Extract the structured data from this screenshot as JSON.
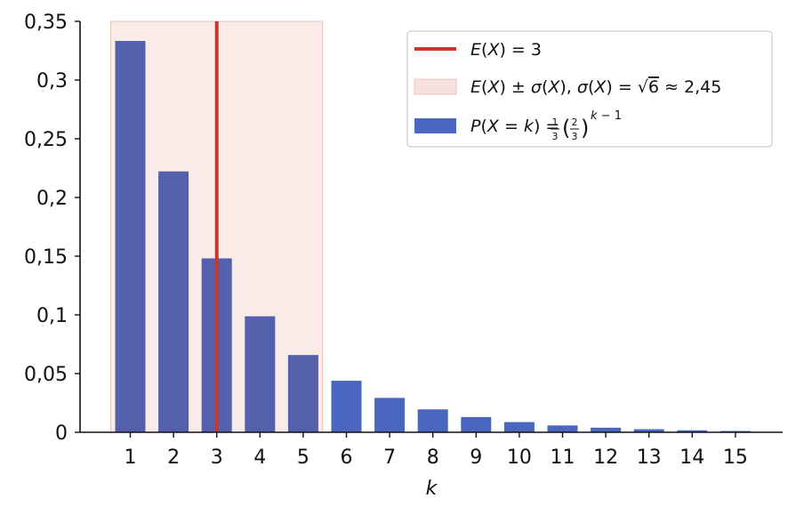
{
  "chart_data": {
    "type": "bar",
    "xlabel": "k",
    "ylabel": "",
    "title": "",
    "ylim": [
      0,
      0.35
    ],
    "grid": false,
    "legend_position": "top-right",
    "categories": [
      "1",
      "2",
      "3",
      "4",
      "5",
      "6",
      "7",
      "8",
      "9",
      "10",
      "11",
      "12",
      "13",
      "14",
      "15"
    ],
    "values": [
      0.3333,
      0.2222,
      0.1481,
      0.0988,
      0.0658,
      0.0439,
      0.0293,
      0.0195,
      0.013,
      0.0087,
      0.0058,
      0.0039,
      0.0026,
      0.0017,
      0.0011
    ],
    "y_ticks": [
      0,
      0.05,
      0.1,
      0.15,
      0.2,
      0.25,
      0.3,
      0.35
    ],
    "y_tick_labels": [
      "0",
      "0,05",
      "0,1",
      "0,15",
      "0,2",
      "0,25",
      "0,3",
      "0,35"
    ],
    "mean_line": {
      "x": 3,
      "label": "E(X) = 3",
      "color": "#c0392b"
    },
    "std_band": {
      "from": 0.55,
      "to": 5.45,
      "label": "E(X) ± σ(X), σ(X) = √6 ≈ 2,45",
      "color": "#f5d9d6"
    },
    "bar_series_label": "P(X = k) = 1/3 (2/3)^(k−1)",
    "colors": {
      "bar": "#4a67c0",
      "bar_in_band": "#5560ac",
      "axis": "#111111"
    }
  }
}
